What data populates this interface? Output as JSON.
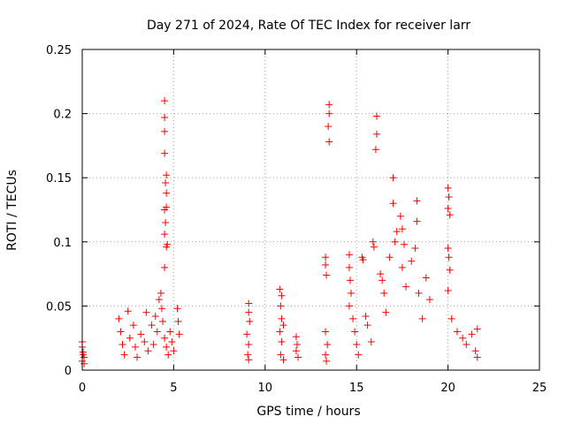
{
  "chart_data": {
    "type": "scatter",
    "title": "Day 271 of 2024, Rate Of TEC Index for receiver larr",
    "xlabel": "GPS time / hours",
    "ylabel": "ROTI / TECUs",
    "xlim": [
      0,
      25
    ],
    "ylim": [
      0,
      0.25
    ],
    "xticks": [
      0,
      5,
      10,
      15,
      20,
      25
    ],
    "yticks": [
      0,
      0.05,
      0.1,
      0.15,
      0.2,
      0.25
    ],
    "xtick_labels": [
      "0",
      "5",
      "10",
      "15",
      "20",
      "25"
    ],
    "ytick_labels": [
      "0",
      "0.05",
      "0.1",
      "0.15",
      "0.2",
      "0.25"
    ],
    "grid": true,
    "marker": "+",
    "color": "#ff0000",
    "series": [
      {
        "name": "ROTI",
        "points": [
          [
            0.0,
            0.022
          ],
          [
            0.0,
            0.018
          ],
          [
            0.05,
            0.014
          ],
          [
            0.1,
            0.01
          ],
          [
            0.0,
            0.007
          ],
          [
            0.1,
            0.005
          ],
          [
            0.05,
            0.012
          ],
          [
            2.0,
            0.04
          ],
          [
            2.1,
            0.03
          ],
          [
            2.2,
            0.02
          ],
          [
            2.3,
            0.012
          ],
          [
            2.5,
            0.046
          ],
          [
            2.6,
            0.025
          ],
          [
            2.8,
            0.035
          ],
          [
            2.9,
            0.018
          ],
          [
            3.0,
            0.01
          ],
          [
            3.2,
            0.028
          ],
          [
            3.4,
            0.022
          ],
          [
            3.5,
            0.045
          ],
          [
            3.6,
            0.015
          ],
          [
            3.8,
            0.035
          ],
          [
            3.9,
            0.02
          ],
          [
            4.0,
            0.042
          ],
          [
            4.1,
            0.03
          ],
          [
            4.2,
            0.055
          ],
          [
            4.3,
            0.06
          ],
          [
            4.35,
            0.048
          ],
          [
            4.4,
            0.038
          ],
          [
            4.5,
            0.025
          ],
          [
            4.6,
            0.018
          ],
          [
            4.7,
            0.012
          ],
          [
            4.8,
            0.03
          ],
          [
            4.9,
            0.022
          ],
          [
            5.0,
            0.015
          ],
          [
            4.5,
            0.21
          ],
          [
            4.5,
            0.197
          ],
          [
            4.5,
            0.186
          ],
          [
            4.5,
            0.169
          ],
          [
            4.6,
            0.152
          ],
          [
            4.55,
            0.146
          ],
          [
            4.6,
            0.138
          ],
          [
            4.6,
            0.127
          ],
          [
            4.5,
            0.125
          ],
          [
            4.55,
            0.115
          ],
          [
            4.5,
            0.106
          ],
          [
            4.65,
            0.098
          ],
          [
            4.6,
            0.096
          ],
          [
            4.5,
            0.08
          ],
          [
            5.2,
            0.048
          ],
          [
            5.25,
            0.038
          ],
          [
            5.3,
            0.028
          ],
          [
            9.1,
            0.052
          ],
          [
            9.1,
            0.045
          ],
          [
            9.15,
            0.038
          ],
          [
            9.0,
            0.028
          ],
          [
            9.1,
            0.02
          ],
          [
            9.05,
            0.012
          ],
          [
            9.1,
            0.008
          ],
          [
            10.8,
            0.063
          ],
          [
            10.9,
            0.058
          ],
          [
            10.85,
            0.05
          ],
          [
            10.9,
            0.04
          ],
          [
            11.0,
            0.035
          ],
          [
            10.8,
            0.03
          ],
          [
            10.9,
            0.022
          ],
          [
            10.85,
            0.012
          ],
          [
            11.0,
            0.008
          ],
          [
            11.7,
            0.026
          ],
          [
            11.75,
            0.02
          ],
          [
            11.7,
            0.015
          ],
          [
            11.8,
            0.01
          ],
          [
            13.3,
            0.088
          ],
          [
            13.3,
            0.082
          ],
          [
            13.35,
            0.074
          ],
          [
            13.3,
            0.03
          ],
          [
            13.4,
            0.02
          ],
          [
            13.3,
            0.012
          ],
          [
            13.35,
            0.007
          ],
          [
            13.5,
            0.207
          ],
          [
            13.5,
            0.2
          ],
          [
            13.45,
            0.19
          ],
          [
            13.5,
            0.178
          ],
          [
            14.6,
            0.09
          ],
          [
            14.6,
            0.08
          ],
          [
            14.65,
            0.07
          ],
          [
            14.7,
            0.06
          ],
          [
            14.6,
            0.05
          ],
          [
            14.8,
            0.04
          ],
          [
            14.9,
            0.03
          ],
          [
            15.0,
            0.02
          ],
          [
            15.1,
            0.012
          ],
          [
            15.3,
            0.088
          ],
          [
            15.35,
            0.086
          ],
          [
            15.5,
            0.042
          ],
          [
            15.6,
            0.035
          ],
          [
            15.8,
            0.022
          ],
          [
            15.9,
            0.1
          ],
          [
            15.95,
            0.096
          ],
          [
            16.1,
            0.198
          ],
          [
            16.1,
            0.184
          ],
          [
            16.05,
            0.172
          ],
          [
            16.3,
            0.075
          ],
          [
            16.4,
            0.07
          ],
          [
            16.5,
            0.06
          ],
          [
            16.6,
            0.045
          ],
          [
            16.8,
            0.088
          ],
          [
            17.0,
            0.13
          ],
          [
            17.0,
            0.15
          ],
          [
            17.2,
            0.108
          ],
          [
            17.1,
            0.1
          ],
          [
            17.4,
            0.12
          ],
          [
            17.5,
            0.11
          ],
          [
            17.6,
            0.098
          ],
          [
            17.5,
            0.08
          ],
          [
            17.7,
            0.065
          ],
          [
            18.0,
            0.085
          ],
          [
            18.2,
            0.095
          ],
          [
            18.3,
            0.132
          ],
          [
            18.3,
            0.116
          ],
          [
            18.4,
            0.06
          ],
          [
            18.6,
            0.04
          ],
          [
            18.8,
            0.072
          ],
          [
            19.0,
            0.055
          ],
          [
            20.0,
            0.142
          ],
          [
            20.05,
            0.135
          ],
          [
            20.0,
            0.126
          ],
          [
            20.1,
            0.121
          ],
          [
            20.0,
            0.095
          ],
          [
            20.05,
            0.088
          ],
          [
            20.1,
            0.078
          ],
          [
            20.0,
            0.062
          ],
          [
            20.2,
            0.04
          ],
          [
            20.5,
            0.03
          ],
          [
            20.8,
            0.025
          ],
          [
            21.0,
            0.02
          ],
          [
            21.3,
            0.028
          ],
          [
            21.6,
            0.032
          ],
          [
            21.5,
            0.015
          ],
          [
            21.6,
            0.01
          ]
        ]
      }
    ]
  }
}
